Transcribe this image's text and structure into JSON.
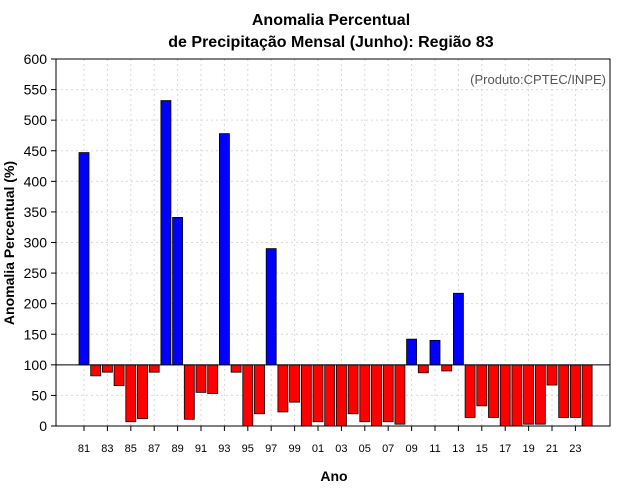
{
  "chart_data": {
    "type": "bar",
    "title_line1": "Anomalia Percentual",
    "title_line2": "de Precipitação Mensal (Junho): Região 83",
    "xlabel": "Ano",
    "ylabel": "Anomalia Percentual (%)",
    "credit": "(Produto:CPTEC/INPE)",
    "ylim": [
      0,
      600
    ],
    "yticks": [
      0,
      50,
      100,
      150,
      200,
      250,
      300,
      350,
      400,
      450,
      500,
      550,
      600
    ],
    "baseline": 100,
    "colors": {
      "above": "#0000ff",
      "below": "#ff0000",
      "grid": "#d9d9d9",
      "frame": "#000000"
    },
    "categories": [
      "81",
      "82",
      "83",
      "84",
      "85",
      "86",
      "87",
      "88",
      "89",
      "90",
      "91",
      "92",
      "93",
      "94",
      "95",
      "96",
      "97",
      "98",
      "99",
      "00",
      "01",
      "02",
      "03",
      "04",
      "05",
      "06",
      "07",
      "08",
      "09",
      "10",
      "11",
      "12",
      "13",
      "14",
      "15",
      "16",
      "17",
      "18",
      "19",
      "20",
      "21",
      "22",
      "23",
      "24"
    ],
    "xtick_labels": [
      "81",
      "83",
      "85",
      "87",
      "89",
      "91",
      "93",
      "95",
      "97",
      "99",
      "01",
      "03",
      "05",
      "07",
      "09",
      "11",
      "13",
      "15",
      "17",
      "19",
      "21",
      "23"
    ],
    "values": [
      447,
      82,
      88,
      66,
      7,
      12,
      88,
      532,
      341,
      11,
      55,
      53,
      478,
      88,
      0,
      20,
      290,
      23,
      39,
      0,
      7,
      0,
      0,
      20,
      7,
      0,
      7,
      3,
      142,
      87,
      140,
      90,
      217,
      14,
      33,
      14,
      0,
      0,
      3,
      3,
      67,
      14,
      14,
      0
    ]
  }
}
